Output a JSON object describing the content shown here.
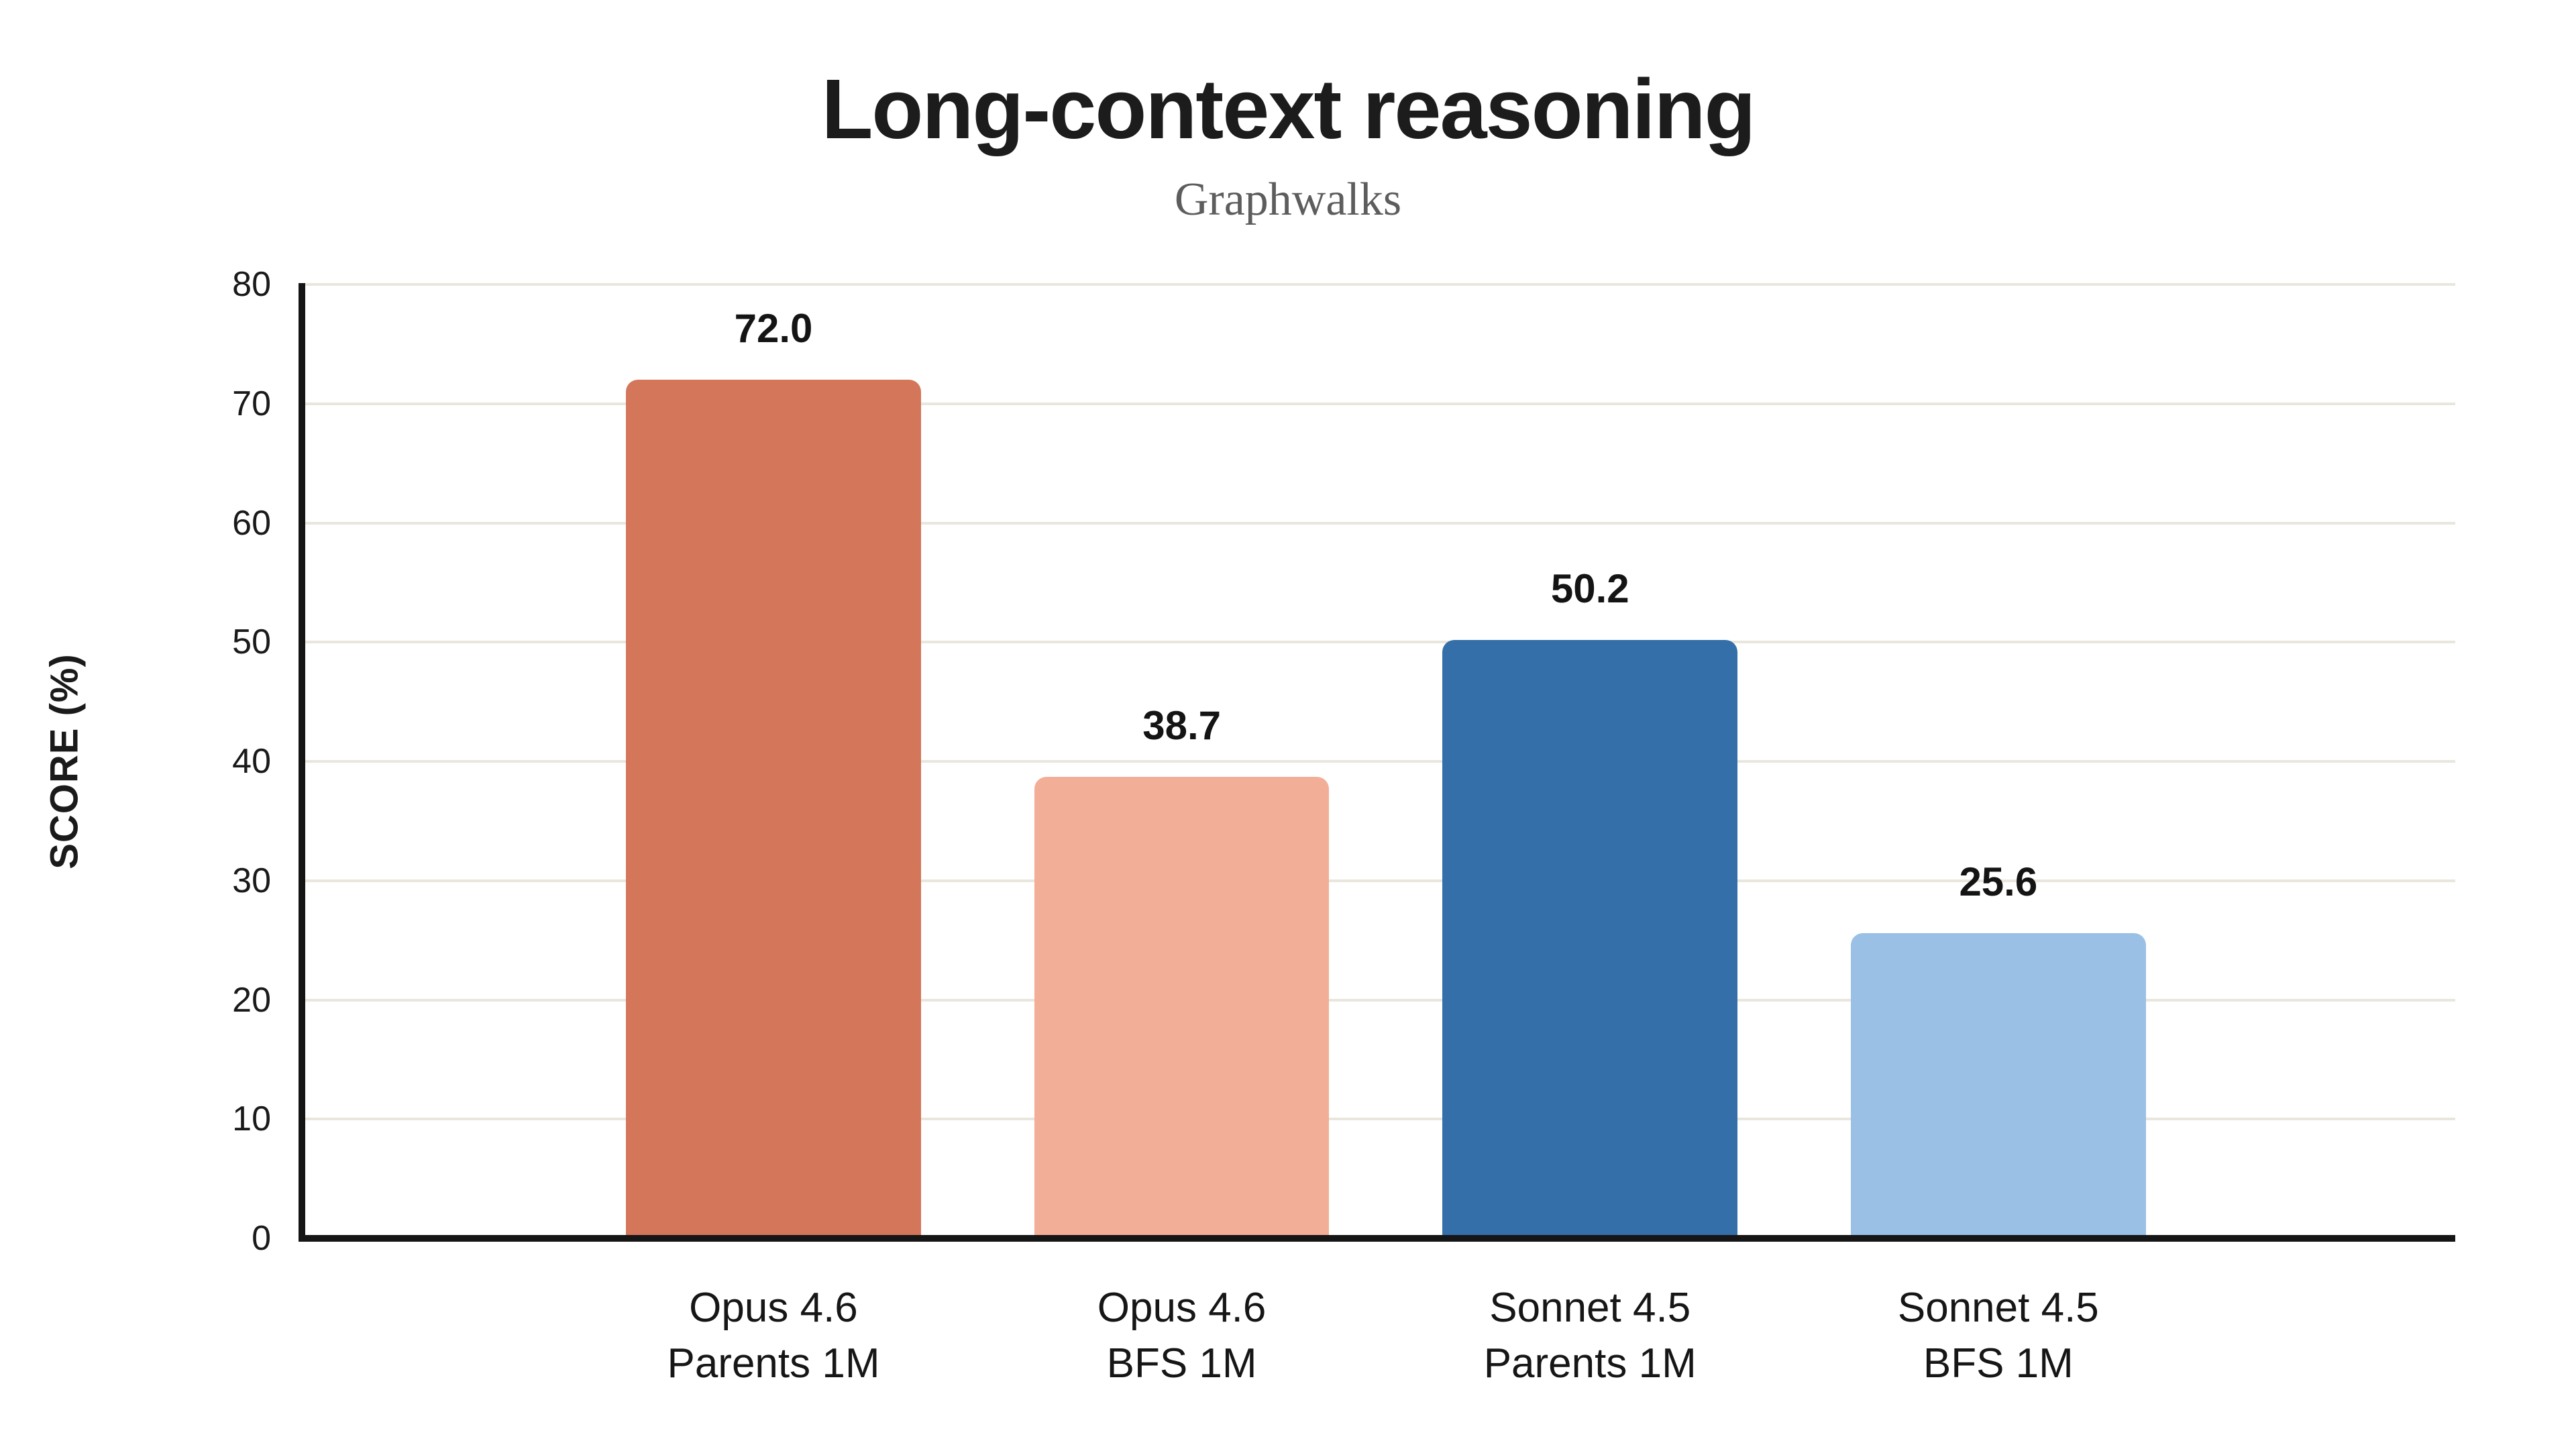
{
  "chart_data": {
    "type": "bar",
    "title": "Long-context reasoning",
    "subtitle": "Graphwalks",
    "xlabel": "",
    "ylabel": "SCORE (%)",
    "ylim": [
      0,
      80
    ],
    "yticks": [
      0,
      10,
      20,
      30,
      40,
      50,
      60,
      70,
      80
    ],
    "grid": "horizontal",
    "legend_position": "none",
    "categories": [
      [
        "Opus 4.6",
        "Parents 1M"
      ],
      [
        "Opus 4.6",
        "BFS 1M"
      ],
      [
        "Sonnet 4.5",
        "Parents 1M"
      ],
      [
        "Sonnet 4.5",
        "BFS 1M"
      ]
    ],
    "values": [
      72.0,
      38.7,
      50.2,
      25.6
    ],
    "value_labels": [
      "72.0",
      "38.7",
      "50.2",
      "25.6"
    ],
    "bar_colors": [
      "#d4765a",
      "#f2ae97",
      "#356fa9",
      "#9ac0e5"
    ],
    "colors": {
      "background": "#ffffff",
      "title": "#1c1c1c",
      "subtitle": "#5d5d5d",
      "axis": "#151515",
      "gridline": "#e9e6de",
      "tick_label": "#1a1a1a",
      "value_label": "#141414"
    }
  }
}
